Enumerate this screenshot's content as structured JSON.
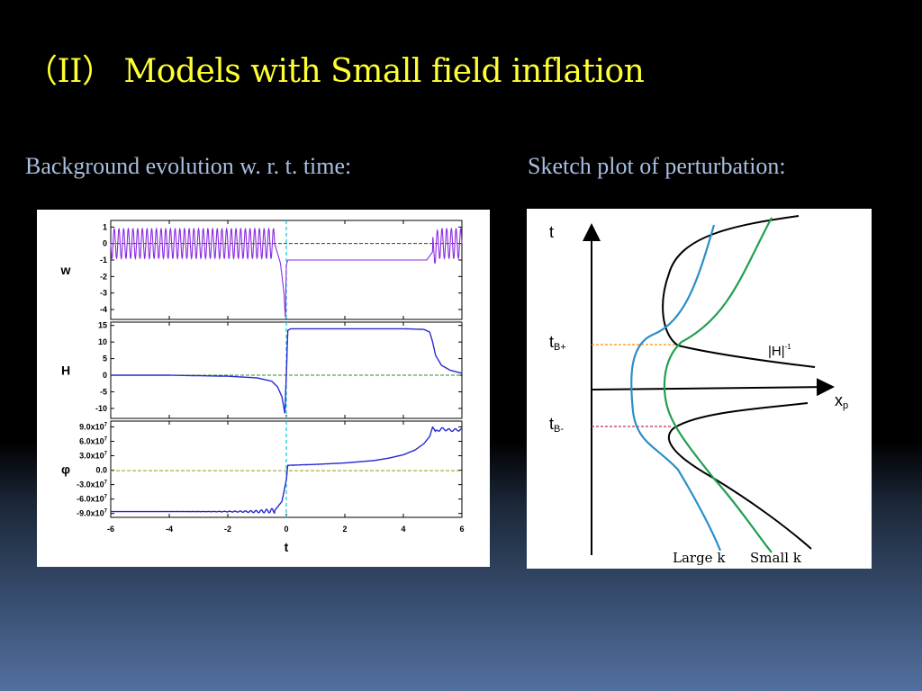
{
  "slide": {
    "title": "（II） Models with Small field inflation",
    "left_caption": "Background evolution w. r. t. time:",
    "right_caption": "Sketch plot of perturbation:"
  },
  "colors": {
    "title": "#ffff33",
    "caption": "#a9bfe0",
    "w_curve": "#8a2be2",
    "curve_blue": "#2a2ad0",
    "ref_w": "#8b1a1a",
    "ref_H": "#2e8b2e",
    "ref_phi": "#9b9b10",
    "bounce_line": "#00c8e0",
    "large_k": "#2a8fc8",
    "small_k": "#20a050",
    "t_plus_dash": "#ff8c00",
    "t_minus_dash": "#c0304a"
  },
  "chart_data": [
    {
      "type": "line",
      "panel": "w",
      "ylabel": "w",
      "x": [
        -6,
        -5.2,
        -4.4,
        -3.6,
        -2.8,
        -2.0,
        -1.2,
        -0.4,
        -0.2,
        -0.08,
        -0.03,
        0.0,
        0.05,
        0.2,
        1.0,
        2.0,
        3.0,
        4.0,
        4.8,
        5.0,
        5.2,
        6.0
      ],
      "values": [
        0,
        0,
        0,
        0,
        0,
        0,
        0,
        0,
        -1.2,
        -3.0,
        -4.6,
        -1.3,
        -1.0,
        -1.0,
        -1.0,
        -1.0,
        -1.0,
        -1.0,
        -1.0,
        -0.5,
        0,
        0
      ],
      "oscillation": {
        "x_ranges": [
          [
            -6,
            -0.4
          ],
          [
            5.0,
            6
          ]
        ],
        "amplitude": 0.9
      },
      "reference_line": 0,
      "yticks": [
        1,
        0,
        -1,
        -2,
        -3,
        -4
      ],
      "ylim": [
        -4.6,
        1.4
      ]
    },
    {
      "type": "line",
      "panel": "H",
      "ylabel": "H",
      "x": [
        -6,
        -4,
        -2,
        -1,
        -0.5,
        -0.3,
        -0.15,
        -0.05,
        0.0,
        0.05,
        0.15,
        0.3,
        1,
        2,
        3,
        4,
        4.7,
        4.9,
        5.0,
        5.1,
        5.3,
        5.6,
        6
      ],
      "values": [
        0,
        0,
        -0.3,
        -0.8,
        -1.8,
        -3.5,
        -6.5,
        -11.5,
        0,
        13.5,
        14.0,
        14.0,
        14.0,
        14.0,
        14.0,
        14.0,
        13.8,
        13.0,
        10.0,
        6.0,
        3.0,
        1.5,
        0.6
      ],
      "reference_line": 0,
      "yticks": [
        15,
        10,
        5,
        0,
        -5,
        -10
      ],
      "ylim": [
        -13,
        16
      ]
    },
    {
      "type": "line",
      "panel": "phi",
      "ylabel": "φ",
      "x": [
        -6,
        -4,
        -2,
        -1,
        -0.4,
        -0.15,
        0.0,
        0.05,
        0.5,
        1,
        2,
        3,
        3.5,
        4,
        4.4,
        4.7,
        4.9,
        5.0,
        5.1,
        5.3,
        5.6,
        6
      ],
      "values": [
        -86000000.0,
        -86000000.0,
        -86000000.0,
        -86000000.0,
        -84000000.0,
        -65000000.0,
        -20000000.0,
        10000000.0,
        11000000.0,
        12000000.0,
        15000000.0,
        20000000.0,
        25000000.0,
        32000000.0,
        42000000.0,
        55000000.0,
        70000000.0,
        90000000.0,
        80000000.0,
        86000000.0,
        83000000.0,
        84000000.0
      ],
      "reference_line": -1000000.0,
      "yticks": [
        90000000.0,
        60000000.0,
        30000000.0,
        0.0,
        -30000000.0,
        -60000000.0,
        -90000000.0
      ],
      "ytick_labels": [
        "9.0x10",
        "6.0x10",
        "3.0x10",
        "0.0",
        "-3.0x10",
        "-6.0x10",
        "-9.0x10"
      ],
      "ytick_exponent": "7",
      "ylim": [
        -98000000.0,
        102000000.0
      ]
    },
    {
      "type": "line",
      "panel": "shared_x",
      "xlabel": "t",
      "xticks": [
        -6,
        -4,
        -2,
        0,
        2,
        4,
        6
      ],
      "xlim": [
        -6,
        6
      ],
      "bounce_time": 0
    },
    {
      "type": "line",
      "panel": "sketch",
      "ylabel": "t",
      "xlabel": "x",
      "xlabel_sub": "p",
      "t_plus_label": "t",
      "t_plus_sub": "B+",
      "t_minus_label": "t",
      "t_minus_sub": "B-",
      "horizon_label": "|H|",
      "horizon_sup": "-1",
      "large_k_label": "Large k",
      "small_k_label": "Small k",
      "note": "Schematic sketch: two hyperbola-like |H|^-1 branches around the bounce, blue (large k) and green (small k) perturbation modes."
    }
  ]
}
